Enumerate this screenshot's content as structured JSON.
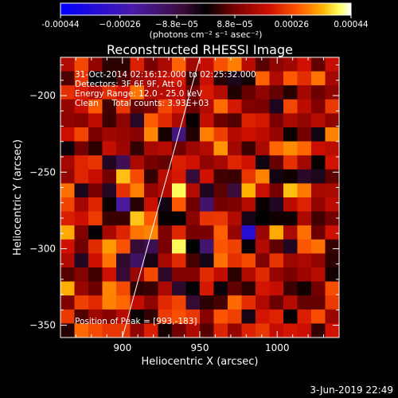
{
  "chart_data": {
    "type": "heatmap",
    "title": "Reconstructed RHESSI Image",
    "xlabel": "Heliocentric X (arcsec)",
    "ylabel": "Heliocentric Y (arcsec)",
    "xlim": [
      860,
      1040
    ],
    "ylim": [
      -358,
      -175
    ],
    "x_ticks": [
      900,
      950,
      1000
    ],
    "x_tick_labels": [
      "900",
      "950",
      "1000"
    ],
    "y_ticks": [
      -200,
      -250,
      -300,
      -350
    ],
    "y_tick_labels": [
      "−200",
      "−250",
      "−300",
      "−350"
    ],
    "colorbar": {
      "range": [
        -0.00044,
        0.00044
      ],
      "tick_values": [
        -0.00044,
        -0.00026,
        -8.8e-05,
        8.8e-05,
        0.00026,
        0.00044
      ],
      "tick_labels": [
        "-0.00044",
        "−0.00026",
        "−8.8e−05",
        "8.8e−05",
        "0.00026",
        "0.00044"
      ],
      "units_label": "(photons cm⁻² s⁻¹ asec⁻²)",
      "colormap": [
        "#0000ff",
        "#4a1aa8",
        "#3a0c3a",
        "#000000",
        "#7a0000",
        "#d01000",
        "#ff5a00",
        "#ffb000",
        "#ffff60",
        "#ffffff"
      ]
    },
    "annotations": {
      "time": "31-Oct-2014 02:16:12.000 to 02:25:32.000",
      "detectors": "Detectors: 3F 6F 9F, Att 0",
      "energy": "Energy Range: 12.0 - 25.0 keV",
      "clean": "Clean     Total counts: 3.93E+03",
      "peak": "Position of Peak = [993,-183]"
    },
    "limb_line": {
      "x": [
        900,
        950
      ],
      "y": [
        -358,
        -175
      ]
    },
    "grid": "image pixels ~20 x 20",
    "grid_size": [
      20,
      20
    ]
  },
  "footer": {
    "date": "3-Jun-2019 22:49"
  }
}
